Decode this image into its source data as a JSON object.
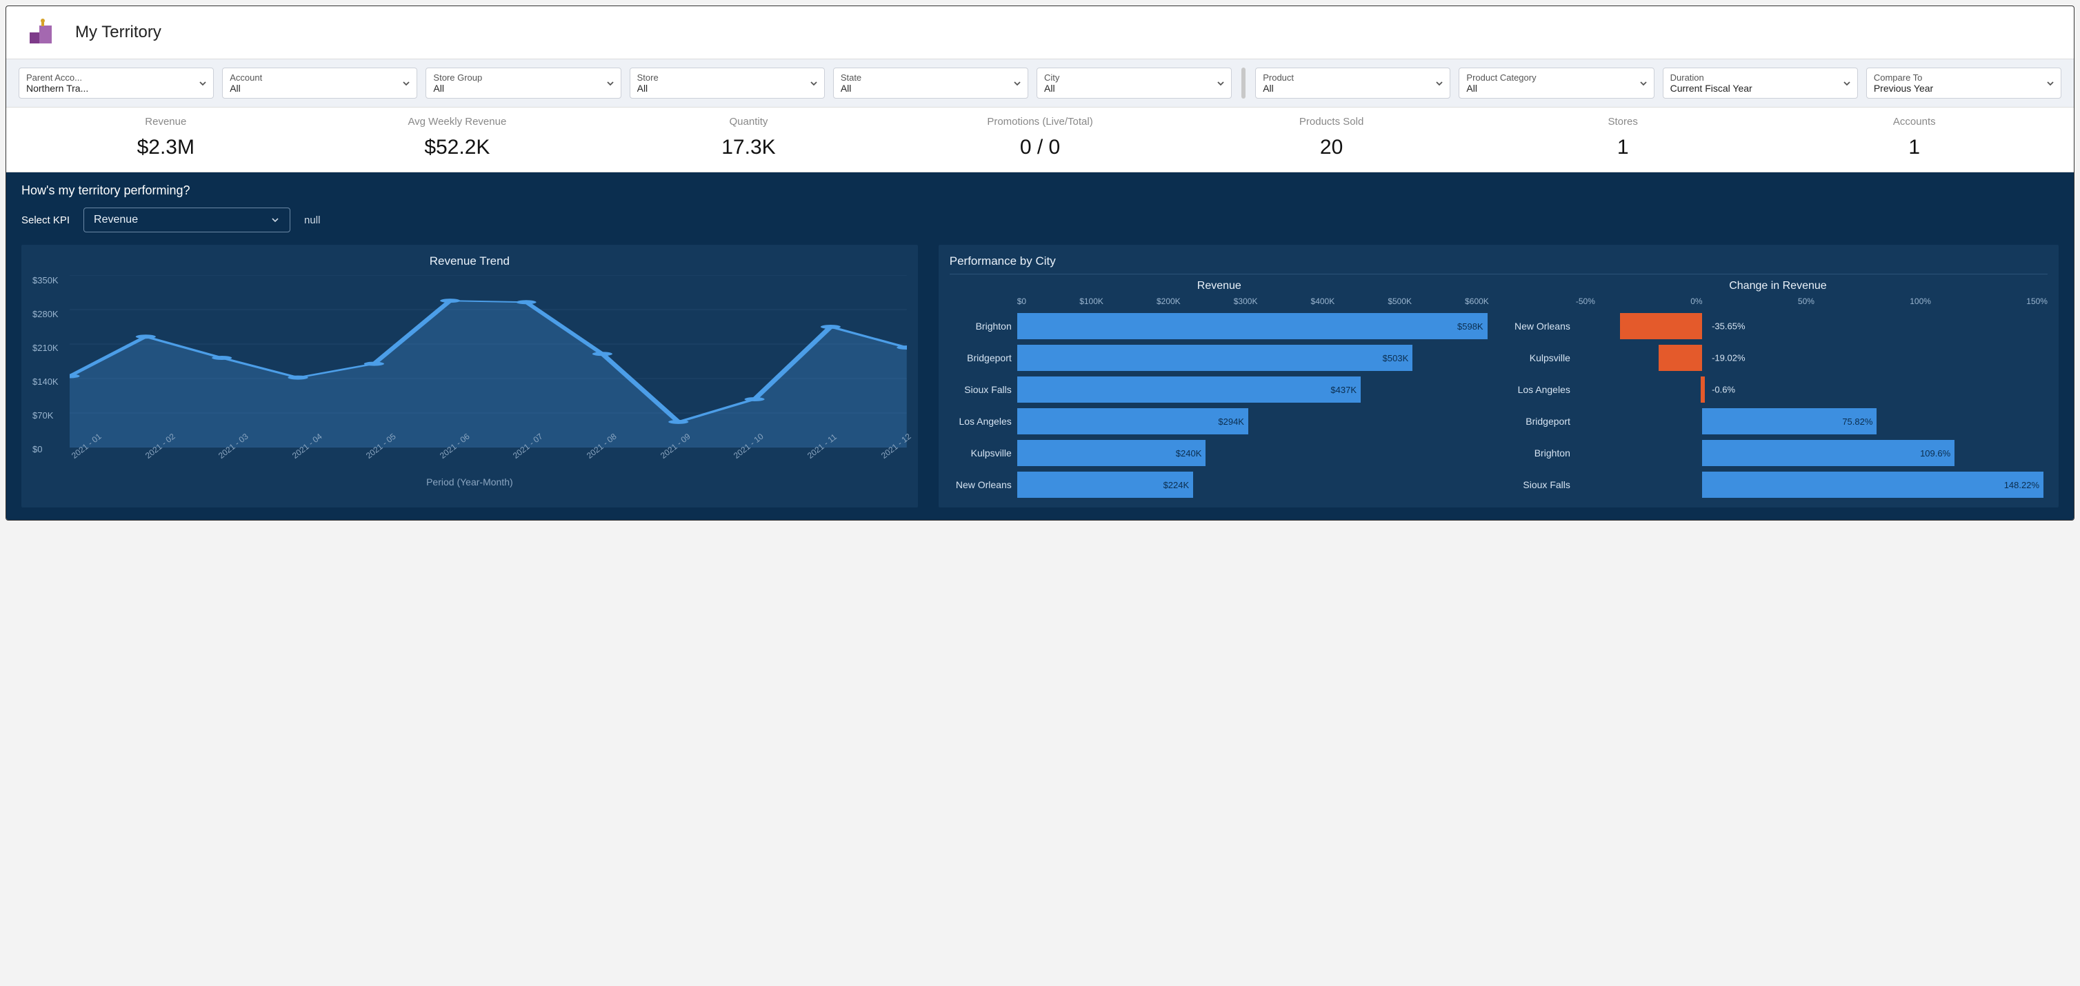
{
  "header": {
    "title": "My Territory"
  },
  "filters": [
    {
      "label": "Parent Acco...",
      "value": "Northern Tra..."
    },
    {
      "label": "Account",
      "value": "All"
    },
    {
      "label": "Store Group",
      "value": "All"
    },
    {
      "label": "Store",
      "value": "All"
    },
    {
      "label": "State",
      "value": "All"
    },
    {
      "label": "City",
      "value": "All"
    }
  ],
  "filters2": [
    {
      "label": "Product",
      "value": "All"
    },
    {
      "label": "Product Category",
      "value": "All"
    },
    {
      "label": "Duration",
      "value": "Current Fiscal Year"
    },
    {
      "label": "Compare To",
      "value": "Previous Year"
    }
  ],
  "kpis": [
    {
      "label": "Revenue",
      "value": "$2.3M"
    },
    {
      "label": "Avg Weekly Revenue",
      "value": "$52.2K"
    },
    {
      "label": "Quantity",
      "value": "17.3K"
    },
    {
      "label": "Promotions (Live/Total)",
      "value": "0 / 0"
    },
    {
      "label": "Products Sold",
      "value": "20"
    },
    {
      "label": "Stores",
      "value": "1"
    },
    {
      "label": "Accounts",
      "value": "1"
    }
  ],
  "perf": {
    "question": "How's my territory performing?",
    "selectLabel": "Select KPI",
    "selectedKpi": "Revenue",
    "sideText": "null",
    "panelBg": "#14395c",
    "sectionBg": "#0b2e4f"
  },
  "trendChart": {
    "title": "Revenue Trend",
    "type": "line",
    "lineColor": "#4c9ee8",
    "areaColor": "rgba(76,158,232,0.25)",
    "markerColor": "#4c9ee8",
    "gridColor": "#2b5378",
    "textColor": "#9ab5cf",
    "ylim": [
      0,
      350
    ],
    "ytick_step": 70,
    "ylabels": [
      "$350K",
      "$280K",
      "$210K",
      "$140K",
      "$70K",
      "$0"
    ],
    "xlabels": [
      "2021 - 01",
      "2021 - 02",
      "2021 - 03",
      "2021 - 04",
      "2021 - 05",
      "2021 - 06",
      "2021 - 07",
      "2021 - 08",
      "2021 - 09",
      "2021 - 10",
      "2021 - 11",
      "2021 - 12"
    ],
    "xAxisTitle": "Period (Year-Month)",
    "values": [
      145,
      225,
      182,
      142,
      170,
      298,
      295,
      190,
      52,
      98,
      245,
      203
    ]
  },
  "perfByCity": {
    "panelTitle": "Performance by City",
    "revenue": {
      "title": "Revenue",
      "ticks": [
        "$0",
        "$100K",
        "$200K",
        "$300K",
        "$400K",
        "$500K",
        "$600K"
      ],
      "max": 600,
      "barColor": "#3d8fe0",
      "rows": [
        {
          "city": "Brighton",
          "value": 598,
          "label": "$598K"
        },
        {
          "city": "Bridgeport",
          "value": 503,
          "label": "$503K"
        },
        {
          "city": "Sioux Falls",
          "value": 437,
          "label": "$437K"
        },
        {
          "city": "Los Angeles",
          "value": 294,
          "label": "$294K"
        },
        {
          "city": "Kulpsville",
          "value": 240,
          "label": "$240K"
        },
        {
          "city": "New Orleans",
          "value": 224,
          "label": "$224K"
        }
      ]
    },
    "change": {
      "title": "Change in Revenue",
      "ticks": [
        "-50%",
        "0%",
        "50%",
        "100%",
        "150%"
      ],
      "min": -55,
      "max": 150,
      "zeroFrac": 0.268,
      "posColor": "#3d8fe0",
      "negColor": "#e45a2b",
      "rows": [
        {
          "city": "New Orleans",
          "value": -35.65,
          "label": "-35.65%"
        },
        {
          "city": "Kulpsville",
          "value": -19.02,
          "label": "-19.02%"
        },
        {
          "city": "Los Angeles",
          "value": -0.6,
          "label": "-0.6%"
        },
        {
          "city": "Bridgeport",
          "value": 75.82,
          "label": "75.82%"
        },
        {
          "city": "Brighton",
          "value": 109.6,
          "label": "109.6%"
        },
        {
          "city": "Sioux Falls",
          "value": 148.22,
          "label": "148.22%"
        }
      ]
    }
  },
  "colors": {
    "iconPurple": "#7e3b8a",
    "iconGold": "#d6a22a",
    "chevron": "#555"
  }
}
